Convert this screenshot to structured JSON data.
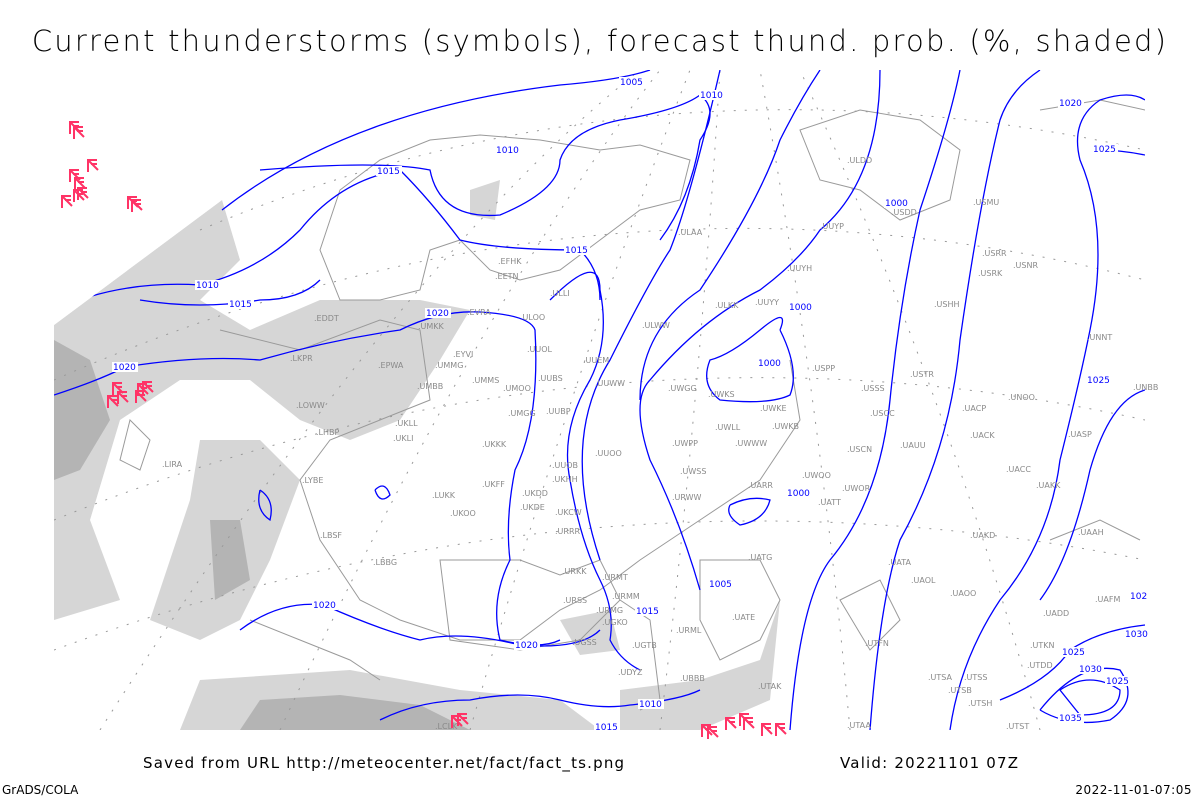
{
  "title": "Current thunderstorms (symbols), forecast thund. prob. (%, shaded)",
  "footer": {
    "saved_from": "Saved from URL http://meteocenter.net/fact/fact_ts.png",
    "valid": "Valid: 20221101 07Z",
    "software": "GrADS/COLA",
    "timestamp": "2022-11-01-07:05"
  },
  "colors": {
    "isobar": "#0000ff",
    "thunderstorm_symbol": "#ff3366",
    "probability_shading": "#c8c8c8",
    "borders": "#999999",
    "station_label": "#8a8a8a"
  },
  "icons": {
    "thunderstorm": "thunderstorm-symbol-icon"
  },
  "isobar_labels": [
    "1005",
    "1010",
    "1010",
    "1015",
    "1015",
    "1010",
    "1015",
    "1020",
    "1020",
    "1000",
    "1000",
    "1000",
    "1000",
    "1005",
    "1015",
    "1020",
    "1020",
    "1010",
    "1015",
    "1020",
    "1025",
    "1025",
    "1030",
    "1030",
    "1025",
    "1025",
    "1035",
    "102"
  ],
  "stations": [
    "UMKK",
    "EVRA",
    "ULOO",
    "EYVI",
    "UMMG",
    "UUOL",
    "UMMS",
    "UMOO",
    "UUBS",
    "UMBB",
    "UMGG",
    "UUBP",
    "UKLL",
    "UKLI",
    "UKKK",
    "UUEM",
    "UUWW",
    "UUOO",
    "UUOB",
    "UKHH",
    "UKFF",
    "UKDD",
    "UKDE",
    "LUKK",
    "UKOO",
    "UKCW",
    "URRR",
    "ULWW",
    "ULKK",
    "UUYY",
    "UWGG",
    "UWKS",
    "UWKE",
    "UWLL",
    "UWKB",
    "UWWW",
    "UWPP",
    "UWSS",
    "URWW",
    "UARR",
    "ULLI",
    "EFHK",
    "EETN",
    "ULAA",
    "UUYH",
    "UUYP",
    "ULDD",
    "USDD",
    "USMU",
    "USRR",
    "USRK",
    "USNR",
    "USHH",
    "USPP",
    "USSS",
    "USTR",
    "USCC",
    "USCN",
    "UAUU",
    "UWOO",
    "UWOR",
    "UATT",
    "UACP",
    "UNOO",
    "UACK",
    "UASP",
    "UACC",
    "UAKK",
    "UNNT",
    "UNBB",
    "UAAH",
    "UAKD",
    "UATG",
    "UATA",
    "UAOL",
    "UAOO",
    "UADD",
    "UAFM",
    "UATE",
    "URML",
    "URMG",
    "URMM",
    "URMT",
    "URKK",
    "URSS",
    "UGSS",
    "UGKO",
    "UGTB",
    "UBBB",
    "UDYZ",
    "UTAK",
    "UTAA",
    "UTSB",
    "UTSS",
    "UTSA",
    "UTDD",
    "UTKN",
    "UTSH",
    "UTST",
    "UTFN",
    "LBBG",
    "LBSF",
    "LYBE",
    "LIRA",
    "LHBP",
    "LOWW",
    "LKPR",
    "EPWA",
    "EDDT",
    "LCLK"
  ]
}
